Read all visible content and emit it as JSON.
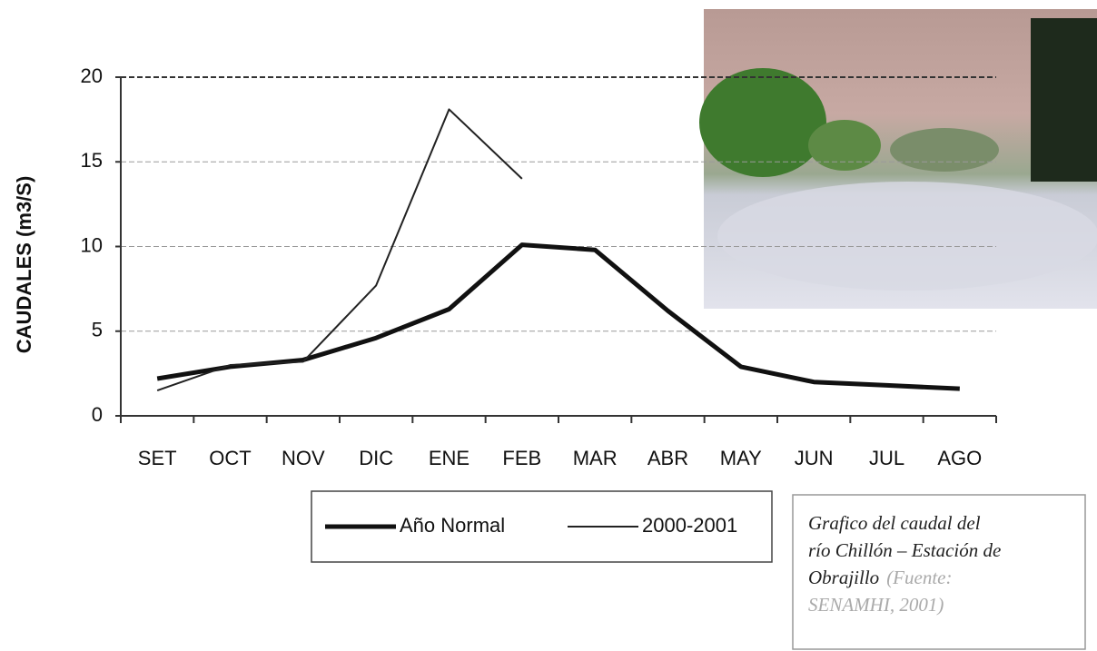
{
  "chart_data": {
    "type": "line",
    "y_label": "CAUDALES (m3/S)",
    "categories": [
      "SET",
      "OCT",
      "NOV",
      "DIC",
      "ENE",
      "FEB",
      "MAR",
      "ABR",
      "MAY",
      "JUN",
      "JUL",
      "AGO"
    ],
    "series": [
      {
        "name": "Año Normal",
        "color": "#111111",
        "line_width": 5,
        "values": [
          2.2,
          2.9,
          3.3,
          4.6,
          6.3,
          10.1,
          9.8,
          6.2,
          2.9,
          2.0,
          1.8,
          1.6
        ]
      },
      {
        "name": "2000-2001",
        "color": "#222222",
        "line_width": 2,
        "values": [
          1.5,
          3.0,
          3.2,
          7.7,
          18.1,
          14.0,
          null,
          null,
          null,
          null,
          null,
          null
        ]
      }
    ],
    "ylim": [
      0,
      20
    ],
    "yticks": [
      0,
      5,
      10,
      15,
      20
    ],
    "grid": true,
    "caption": {
      "lines": [
        "Grafico del caudal del",
        "río Chillón – Estación de",
        "Obrajillo"
      ],
      "source_lines": [
        "(Fuente:",
        "SENAMHI, 2001)"
      ]
    }
  }
}
